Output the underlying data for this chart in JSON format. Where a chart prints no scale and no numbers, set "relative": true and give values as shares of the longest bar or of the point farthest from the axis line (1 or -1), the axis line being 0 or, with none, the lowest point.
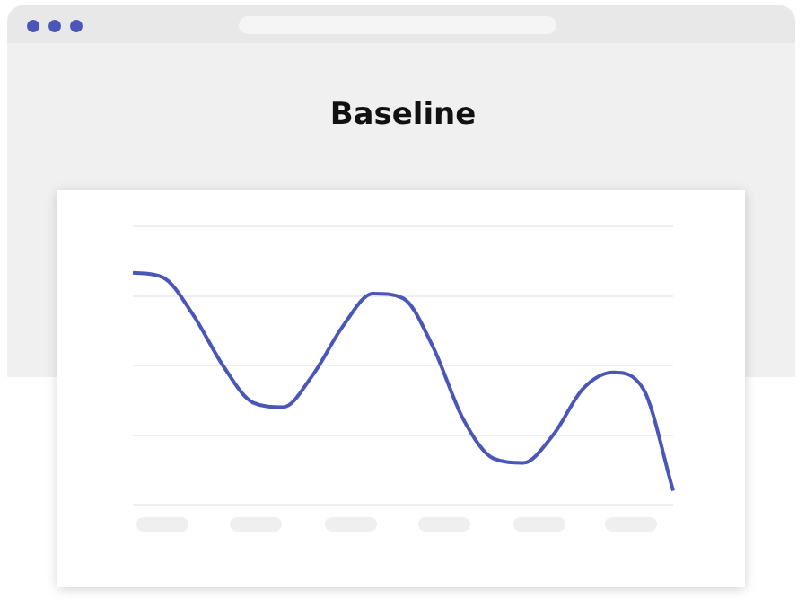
{
  "chart_data": {
    "type": "line",
    "title": "Baseline",
    "relative": true,
    "grid": "y",
    "marker": "none",
    "line_style": "solid",
    "categories": [
      null,
      null,
      null,
      null,
      null,
      null,
      null,
      null,
      null,
      null,
      null,
      null,
      null,
      null,
      null,
      null,
      null,
      null,
      null
    ],
    "series": [
      {
        "color": "#4a56b8",
        "values": [
          1.0,
          0.98,
          0.82,
          0.6,
          0.44,
          0.42,
          0.56,
          0.77,
          0.91,
          0.89,
          0.68,
          0.37,
          0.2,
          0.18,
          0.3,
          0.5,
          0.57,
          0.5,
          0.06
        ]
      }
    ]
  }
}
